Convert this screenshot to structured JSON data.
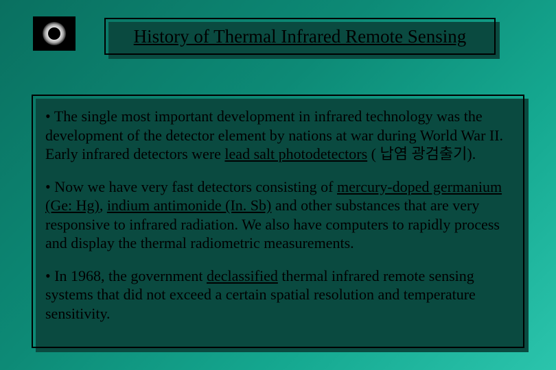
{
  "icon": {
    "name": "eclipse-icon",
    "bg_color": "#000000",
    "glow_color": "#ffffff"
  },
  "title": {
    "text": "History of Thermal Infrared Remote Sensing",
    "fontsize": 27,
    "underline": true,
    "border_color": "#000000",
    "shadow_color": "#0a4a40"
  },
  "body": {
    "border_color": "#000000",
    "shadow_color": "#0a4a40",
    "fontsize": 22,
    "paragraphs": [
      {
        "bullet": "• ",
        "pre": "The single most important development in infrared technology was the development of the detector element by nations at war during World War II. Early infrared detectors were ",
        "u1": "lead salt photodetectors",
        "post": " ( 납염 광검출기)."
      },
      {
        "bullet": "• ",
        "pre": "Now we have very fast detectors consisting of ",
        "u1": "mercury-doped germanium (Ge: Hg)",
        "mid": ", ",
        "u2": "indium antimonide (In. Sb)",
        "post": " and other substances that are very responsive to infrared radiation. We also have computers to rapidly process and display the thermal radiometric measurements."
      },
      {
        "bullet": "• ",
        "pre": "In 1968, the government ",
        "u1": "declassified",
        "post": " thermal infrared remote sensing systems that did not exceed a certain spatial resolution and temperature sensitivity."
      }
    ]
  },
  "background": {
    "gradient_from": "#0a7060",
    "gradient_to": "#2bc4ac"
  }
}
